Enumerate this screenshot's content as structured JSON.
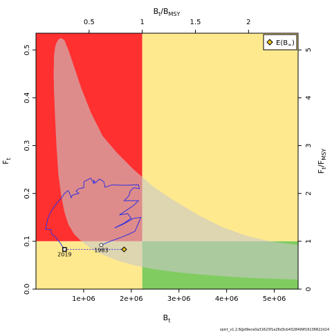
{
  "chart_data": {
    "type": "line",
    "title": "",
    "xlabel": "B",
    "xlabel_sub": "t",
    "ylabel": "F",
    "ylabel_sub": "t",
    "top_axis_label": {
      "num": "B",
      "num_sub": "t",
      "den": "B",
      "den_sub": "MSY"
    },
    "right_axis_label": {
      "num": "F",
      "num_sub": "t",
      "den": "F",
      "den_sub": "MSY"
    },
    "xlim": [
      0,
      5500000
    ],
    "ylim": [
      0,
      0.535
    ],
    "bmsy": 2230000,
    "fmsy": 0.1,
    "x_ticks": [
      {
        "v": 1000000,
        "label": "1e+06"
      },
      {
        "v": 2000000,
        "label": "2e+06"
      },
      {
        "v": 3000000,
        "label": "3e+06"
      },
      {
        "v": 4000000,
        "label": "4e+06"
      },
      {
        "v": 5000000,
        "label": "5e+06"
      }
    ],
    "y_ticks": [
      {
        "v": 0.0,
        "label": "0.0"
      },
      {
        "v": 0.1,
        "label": "0.1"
      },
      {
        "v": 0.2,
        "label": "0.2"
      },
      {
        "v": 0.3,
        "label": "0.3"
      },
      {
        "v": 0.4,
        "label": "0.4"
      },
      {
        "v": 0.5,
        "label": "0.5"
      }
    ],
    "top_ticks": [
      {
        "v": 0.5,
        "label": "0.5"
      },
      {
        "v": 1,
        "label": "1"
      },
      {
        "v": 1.5,
        "label": "1.5"
      },
      {
        "v": 2,
        "label": "2"
      }
    ],
    "right_ticks": [
      {
        "v": 0,
        "label": "0"
      },
      {
        "v": 1,
        "label": "1"
      },
      {
        "v": 2,
        "label": "2"
      },
      {
        "v": 3,
        "label": "3"
      },
      {
        "v": 4,
        "label": "4"
      },
      {
        "v": 5,
        "label": "5"
      }
    ],
    "zones": {
      "overfishing_overfished": "#ff3030",
      "overfished_or_overfishing": "#ffe98f",
      "sustainable": "#80cc60"
    },
    "ci_region_color": "#c8c8c8",
    "trajectory_color": "#3030e0",
    "series": [
      {
        "x": [
          1370000,
          1560000,
          1780000,
          1950000,
          2080000,
          2200000,
          2050000,
          1820000,
          1650000,
          1850000,
          2000000,
          1920000,
          1750000,
          1900000,
          2050000,
          2150000,
          1850000,
          1950000,
          1980000,
          2050000,
          2170000,
          2150000,
          1850000,
          1600000,
          1450000,
          1420000,
          1330000,
          1250000,
          1210000,
          1220000,
          1150000,
          1010000,
          1000000,
          900000,
          840000,
          900000,
          810000,
          760000,
          740000,
          700000,
          670000,
          600000,
          530000,
          440000,
          380000,
          300000,
          250000,
          200000,
          310000,
          330000,
          400000,
          480000,
          520000,
          560000,
          600000
        ],
        "y": [
          0.092,
          0.1,
          0.108,
          0.115,
          0.121,
          0.15,
          0.148,
          0.135,
          0.128,
          0.138,
          0.148,
          0.158,
          0.155,
          0.165,
          0.175,
          0.185,
          0.185,
          0.195,
          0.205,
          0.212,
          0.21,
          0.218,
          0.217,
          0.218,
          0.213,
          0.225,
          0.23,
          0.222,
          0.228,
          0.22,
          0.232,
          0.225,
          0.212,
          0.21,
          0.205,
          0.2,
          0.198,
          0.196,
          0.191,
          0.202,
          0.206,
          0.2,
          0.19,
          0.18,
          0.172,
          0.16,
          0.148,
          0.125,
          0.125,
          0.115,
          0.11,
          0.1,
          0.095,
          0.088,
          0.083
        ]
      }
    ],
    "ci_region": {
      "x": [
        380000,
        400000,
        430000,
        470000,
        530000,
        600000,
        680000,
        800000,
        950000,
        1150000,
        1400000,
        1700000,
        2050000,
        2450000,
        2900000,
        3400000,
        3900000,
        4400000,
        4900000,
        5500000,
        5500000,
        4900000,
        4400000,
        3900000,
        3400000,
        2900000,
        2450000,
        2050000,
        1700000,
        1400000,
        1150000,
        950000,
        800000,
        680000,
        600000,
        530000,
        470000,
        430000,
        400000,
        380000,
        370000,
        380000
      ],
      "y": [
        0.49,
        0.505,
        0.515,
        0.522,
        0.525,
        0.52,
        0.5,
        0.465,
        0.42,
        0.37,
        0.32,
        0.285,
        0.25,
        0.215,
        0.185,
        0.155,
        0.13,
        0.112,
        0.1,
        0.092,
        0.02,
        0.022,
        0.024,
        0.027,
        0.031,
        0.036,
        0.042,
        0.05,
        0.06,
        0.072,
        0.085,
        0.1,
        0.115,
        0.135,
        0.16,
        0.195,
        0.24,
        0.3,
        0.36,
        0.41,
        0.45,
        0.49
      ]
    },
    "points": [
      {
        "label": "1983",
        "x": 1370000,
        "y": 0.092,
        "marker": "circle"
      },
      {
        "label": "2019",
        "x": 600000,
        "y": 0.083,
        "marker": "circle-square"
      },
      {
        "label": "",
        "x": 1850000,
        "y": 0.083,
        "marker": "diamond"
      }
    ],
    "projection": {
      "x": [
        600000,
        1850000
      ],
      "y": [
        0.083,
        0.083
      ]
    },
    "legend": {
      "position": "top-right",
      "entries": [
        {
          "label": "E(B",
          "sub": "∞",
          "close": ")"
        }
      ]
    }
  },
  "footer": {
    "version_text": "spict_v1.2.8@d9ece0a31623f1a26d3cb4328499f16136822d14"
  }
}
